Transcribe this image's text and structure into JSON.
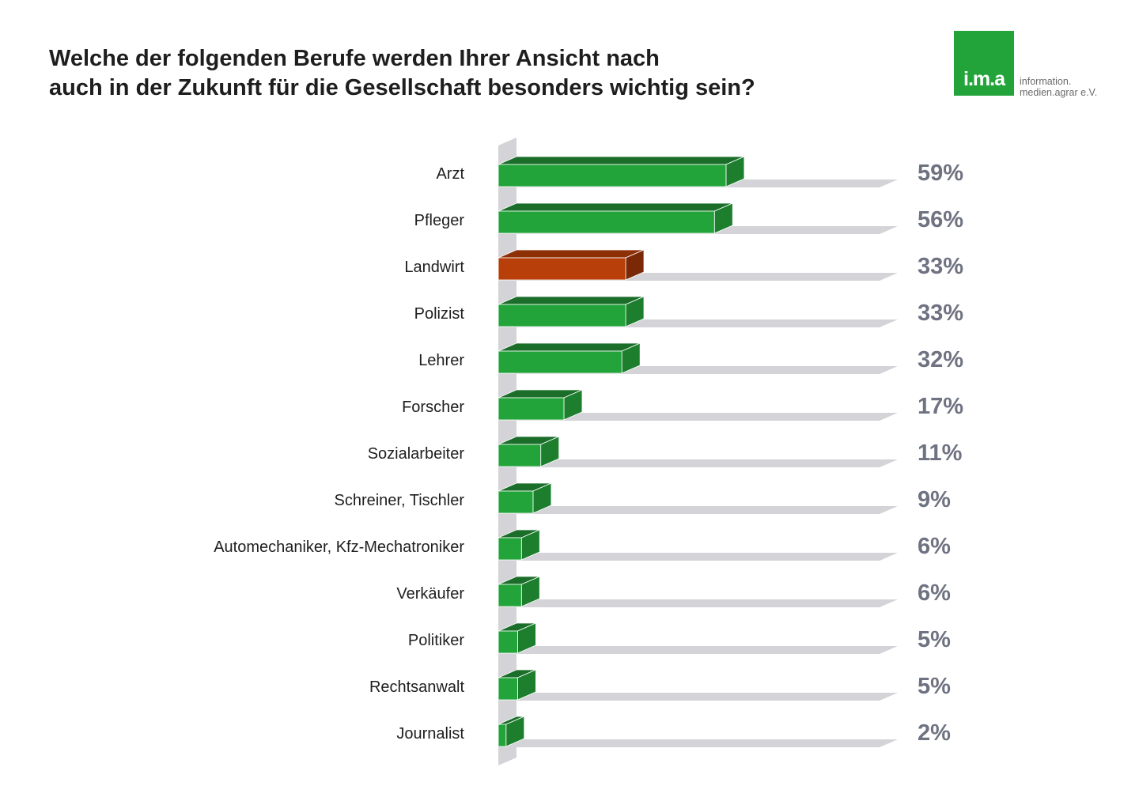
{
  "title": {
    "line1": "Welche der folgenden Berufe werden Ihrer Ansicht nach",
    "line2": "auch in der Zukunft für die Gesellschaft besonders wichtig sein?"
  },
  "logo": {
    "mark": "i.m.a",
    "line1": "information.",
    "line2": "medien.agrar e.V."
  },
  "colors": {
    "bar_green": "#22a43a",
    "bar_green_top": "#1b6e2a",
    "bar_green_side": "#1d7f2e",
    "bar_highlight": "#b83f09",
    "bar_highlight_top": "#8e3006",
    "bar_highlight_side": "#7a2805",
    "track": "#d4d4d8",
    "value_text": "#6e7281",
    "label_text": "#1e1e1e"
  },
  "chart_data": {
    "type": "bar",
    "orientation": "horizontal",
    "categories": [
      "Arzt",
      "Pfleger",
      "Landwirt",
      "Polizist",
      "Lehrer",
      "Forscher",
      "Sozialarbeiter",
      "Schreiner, Tischler",
      "Automechaniker, Kfz-Mechatroniker",
      "Verkäufer",
      "Politiker",
      "Rechtsanwalt",
      "Journalist"
    ],
    "values": [
      59,
      56,
      33,
      33,
      32,
      17,
      11,
      9,
      6,
      6,
      5,
      5,
      2
    ],
    "value_labels": [
      "59%",
      "56%",
      "33%",
      "33%",
      "32%",
      "17%",
      "11%",
      "9%",
      "6%",
      "6%",
      "5%",
      "5%",
      "2%"
    ],
    "highlight": "Landwirt",
    "xlim": [
      0,
      100
    ],
    "unit": "%",
    "grid": false,
    "legend": "none"
  }
}
